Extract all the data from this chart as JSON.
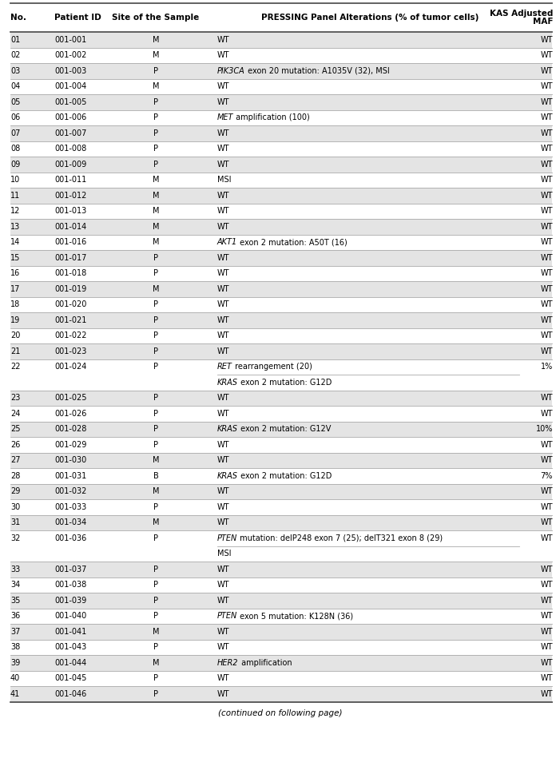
{
  "col_header_line1": [
    "",
    "",
    "",
    "",
    "KAS Adjusted"
  ],
  "col_header_line2": [
    "No.",
    "Patient ID",
    "Site of the Sample",
    "PRESSING Panel Alterations (% of tumor cells)",
    "MAF"
  ],
  "rows": [
    {
      "no": "01",
      "pid": "001-001",
      "site": "M",
      "alt_prefix": "",
      "alt_suffix": "WT",
      "alt2_prefix": "",
      "alt2_suffix": "",
      "maf": "WT",
      "extra_line": false,
      "shaded": true
    },
    {
      "no": "02",
      "pid": "001-002",
      "site": "M",
      "alt_prefix": "",
      "alt_suffix": "WT",
      "alt2_prefix": "",
      "alt2_suffix": "",
      "maf": "WT",
      "extra_line": false,
      "shaded": false
    },
    {
      "no": "03",
      "pid": "001-003",
      "site": "P",
      "alt_prefix": "PIK3CA",
      "alt_suffix": " exon 20 mutation: A1035V (32), MSI",
      "alt2_prefix": "",
      "alt2_suffix": "",
      "maf": "WT",
      "extra_line": false,
      "shaded": true
    },
    {
      "no": "04",
      "pid": "001-004",
      "site": "M",
      "alt_prefix": "",
      "alt_suffix": "WT",
      "alt2_prefix": "",
      "alt2_suffix": "",
      "maf": "WT",
      "extra_line": false,
      "shaded": false
    },
    {
      "no": "05",
      "pid": "001-005",
      "site": "P",
      "alt_prefix": "",
      "alt_suffix": "WT",
      "alt2_prefix": "",
      "alt2_suffix": "",
      "maf": "WT",
      "extra_line": false,
      "shaded": true
    },
    {
      "no": "06",
      "pid": "001-006",
      "site": "P",
      "alt_prefix": "MET",
      "alt_suffix": " amplification (100)",
      "alt2_prefix": "",
      "alt2_suffix": "",
      "maf": "WT",
      "extra_line": false,
      "shaded": false
    },
    {
      "no": "07",
      "pid": "001-007",
      "site": "P",
      "alt_prefix": "",
      "alt_suffix": "WT",
      "alt2_prefix": "",
      "alt2_suffix": "",
      "maf": "WT",
      "extra_line": false,
      "shaded": true
    },
    {
      "no": "08",
      "pid": "001-008",
      "site": "P",
      "alt_prefix": "",
      "alt_suffix": "WT",
      "alt2_prefix": "",
      "alt2_suffix": "",
      "maf": "WT",
      "extra_line": false,
      "shaded": false
    },
    {
      "no": "09",
      "pid": "001-009",
      "site": "P",
      "alt_prefix": "",
      "alt_suffix": "WT",
      "alt2_prefix": "",
      "alt2_suffix": "",
      "maf": "WT",
      "extra_line": false,
      "shaded": true
    },
    {
      "no": "10",
      "pid": "001-011",
      "site": "M",
      "alt_prefix": "",
      "alt_suffix": "MSI",
      "alt2_prefix": "",
      "alt2_suffix": "",
      "maf": "WT",
      "extra_line": false,
      "shaded": false
    },
    {
      "no": "11",
      "pid": "001-012",
      "site": "M",
      "alt_prefix": "",
      "alt_suffix": "WT",
      "alt2_prefix": "",
      "alt2_suffix": "",
      "maf": "WT",
      "extra_line": false,
      "shaded": true
    },
    {
      "no": "12",
      "pid": "001-013",
      "site": "M",
      "alt_prefix": "",
      "alt_suffix": "WT",
      "alt2_prefix": "",
      "alt2_suffix": "",
      "maf": "WT",
      "extra_line": false,
      "shaded": false
    },
    {
      "no": "13",
      "pid": "001-014",
      "site": "M",
      "alt_prefix": "",
      "alt_suffix": "WT",
      "alt2_prefix": "",
      "alt2_suffix": "",
      "maf": "WT",
      "extra_line": false,
      "shaded": true
    },
    {
      "no": "14",
      "pid": "001-016",
      "site": "M",
      "alt_prefix": "AKT1",
      "alt_suffix": " exon 2 mutation: A50T (16)",
      "alt2_prefix": "",
      "alt2_suffix": "",
      "maf": "WT",
      "extra_line": false,
      "shaded": false
    },
    {
      "no": "15",
      "pid": "001-017",
      "site": "P",
      "alt_prefix": "",
      "alt_suffix": "WT",
      "alt2_prefix": "",
      "alt2_suffix": "",
      "maf": "WT",
      "extra_line": false,
      "shaded": true
    },
    {
      "no": "16",
      "pid": "001-018",
      "site": "P",
      "alt_prefix": "",
      "alt_suffix": "WT",
      "alt2_prefix": "",
      "alt2_suffix": "",
      "maf": "WT",
      "extra_line": false,
      "shaded": false
    },
    {
      "no": "17",
      "pid": "001-019",
      "site": "M",
      "alt_prefix": "",
      "alt_suffix": "WT",
      "alt2_prefix": "",
      "alt2_suffix": "",
      "maf": "WT",
      "extra_line": false,
      "shaded": true
    },
    {
      "no": "18",
      "pid": "001-020",
      "site": "P",
      "alt_prefix": "",
      "alt_suffix": "WT",
      "alt2_prefix": "",
      "alt2_suffix": "",
      "maf": "WT",
      "extra_line": false,
      "shaded": false
    },
    {
      "no": "19",
      "pid": "001-021",
      "site": "P",
      "alt_prefix": "",
      "alt_suffix": "WT",
      "alt2_prefix": "",
      "alt2_suffix": "",
      "maf": "WT",
      "extra_line": false,
      "shaded": true
    },
    {
      "no": "20",
      "pid": "001-022",
      "site": "P",
      "alt_prefix": "",
      "alt_suffix": "WT",
      "alt2_prefix": "",
      "alt2_suffix": "",
      "maf": "WT",
      "extra_line": false,
      "shaded": false
    },
    {
      "no": "21",
      "pid": "001-023",
      "site": "P",
      "alt_prefix": "",
      "alt_suffix": "WT",
      "alt2_prefix": "",
      "alt2_suffix": "",
      "maf": "WT",
      "extra_line": false,
      "shaded": true
    },
    {
      "no": "22",
      "pid": "001-024",
      "site": "P",
      "alt_prefix": "RET",
      "alt_suffix": " rearrangement (20)",
      "alt2_prefix": "KRAS",
      "alt2_suffix": " exon 2 mutation: G12D",
      "maf": "1%",
      "extra_line": true,
      "shaded": false
    },
    {
      "no": "23",
      "pid": "001-025",
      "site": "P",
      "alt_prefix": "",
      "alt_suffix": "WT",
      "alt2_prefix": "",
      "alt2_suffix": "",
      "maf": "WT",
      "extra_line": false,
      "shaded": true
    },
    {
      "no": "24",
      "pid": "001-026",
      "site": "P",
      "alt_prefix": "",
      "alt_suffix": "WT",
      "alt2_prefix": "",
      "alt2_suffix": "",
      "maf": "WT",
      "extra_line": false,
      "shaded": false
    },
    {
      "no": "25",
      "pid": "001-028",
      "site": "P",
      "alt_prefix": "KRAS",
      "alt_suffix": " exon 2 mutation: G12V",
      "alt2_prefix": "",
      "alt2_suffix": "",
      "maf": "10%",
      "extra_line": false,
      "shaded": true
    },
    {
      "no": "26",
      "pid": "001-029",
      "site": "P",
      "alt_prefix": "",
      "alt_suffix": "WT",
      "alt2_prefix": "",
      "alt2_suffix": "",
      "maf": "WT",
      "extra_line": false,
      "shaded": false
    },
    {
      "no": "27",
      "pid": "001-030",
      "site": "M",
      "alt_prefix": "",
      "alt_suffix": "WT",
      "alt2_prefix": "",
      "alt2_suffix": "",
      "maf": "WT",
      "extra_line": false,
      "shaded": true
    },
    {
      "no": "28",
      "pid": "001-031",
      "site": "B",
      "alt_prefix": "KRAS",
      "alt_suffix": " exon 2 mutation: G12D",
      "alt2_prefix": "",
      "alt2_suffix": "",
      "maf": "7%",
      "extra_line": false,
      "shaded": false
    },
    {
      "no": "29",
      "pid": "001-032",
      "site": "M",
      "alt_prefix": "",
      "alt_suffix": "WT",
      "alt2_prefix": "",
      "alt2_suffix": "",
      "maf": "WT",
      "extra_line": false,
      "shaded": true
    },
    {
      "no": "30",
      "pid": "001-033",
      "site": "P",
      "alt_prefix": "",
      "alt_suffix": "WT",
      "alt2_prefix": "",
      "alt2_suffix": "",
      "maf": "WT",
      "extra_line": false,
      "shaded": false
    },
    {
      "no": "31",
      "pid": "001-034",
      "site": "M",
      "alt_prefix": "",
      "alt_suffix": "WT",
      "alt2_prefix": "",
      "alt2_suffix": "",
      "maf": "WT",
      "extra_line": false,
      "shaded": true
    },
    {
      "no": "32",
      "pid": "001-036",
      "site": "P",
      "alt_prefix": "PTEN",
      "alt_suffix": " mutation: delP248 exon 7 (25); delT321 exon 8 (29)",
      "alt2_prefix": "",
      "alt2_suffix": "MSI",
      "maf": "WT",
      "extra_line": true,
      "shaded": false
    },
    {
      "no": "33",
      "pid": "001-037",
      "site": "P",
      "alt_prefix": "",
      "alt_suffix": "WT",
      "alt2_prefix": "",
      "alt2_suffix": "",
      "maf": "WT",
      "extra_line": false,
      "shaded": true
    },
    {
      "no": "34",
      "pid": "001-038",
      "site": "P",
      "alt_prefix": "",
      "alt_suffix": "WT",
      "alt2_prefix": "",
      "alt2_suffix": "",
      "maf": "WT",
      "extra_line": false,
      "shaded": false
    },
    {
      "no": "35",
      "pid": "001-039",
      "site": "P",
      "alt_prefix": "",
      "alt_suffix": "WT",
      "alt2_prefix": "",
      "alt2_suffix": "",
      "maf": "WT",
      "extra_line": false,
      "shaded": true
    },
    {
      "no": "36",
      "pid": "001-040",
      "site": "P",
      "alt_prefix": "PTEN",
      "alt_suffix": " exon 5 mutation: K128N (36)",
      "alt2_prefix": "",
      "alt2_suffix": "",
      "maf": "WT",
      "extra_line": false,
      "shaded": false
    },
    {
      "no": "37",
      "pid": "001-041",
      "site": "M",
      "alt_prefix": "",
      "alt_suffix": "WT",
      "alt2_prefix": "",
      "alt2_suffix": "",
      "maf": "WT",
      "extra_line": false,
      "shaded": true
    },
    {
      "no": "38",
      "pid": "001-043",
      "site": "P",
      "alt_prefix": "",
      "alt_suffix": "WT",
      "alt2_prefix": "",
      "alt2_suffix": "",
      "maf": "WT",
      "extra_line": false,
      "shaded": false
    },
    {
      "no": "39",
      "pid": "001-044",
      "site": "M",
      "alt_prefix": "HER2",
      "alt_suffix": " amplification",
      "alt2_prefix": "",
      "alt2_suffix": "",
      "maf": "WT",
      "extra_line": false,
      "shaded": true
    },
    {
      "no": "40",
      "pid": "001-045",
      "site": "P",
      "alt_prefix": "",
      "alt_suffix": "WT",
      "alt2_prefix": "",
      "alt2_suffix": "",
      "maf": "WT",
      "extra_line": false,
      "shaded": false
    },
    {
      "no": "41",
      "pid": "001-046",
      "site": "P",
      "alt_prefix": "",
      "alt_suffix": "WT",
      "alt2_prefix": "",
      "alt2_suffix": "",
      "maf": "WT",
      "extra_line": false,
      "shaded": true
    }
  ],
  "bg_color": "#ffffff",
  "shaded_color": "#e4e4e4",
  "text_color": "#000000",
  "line_color_heavy": "#555555",
  "line_color_light": "#aaaaaa",
  "footer_text": "(continued on following page)",
  "font_size": 7.0,
  "header_font_size": 7.5
}
